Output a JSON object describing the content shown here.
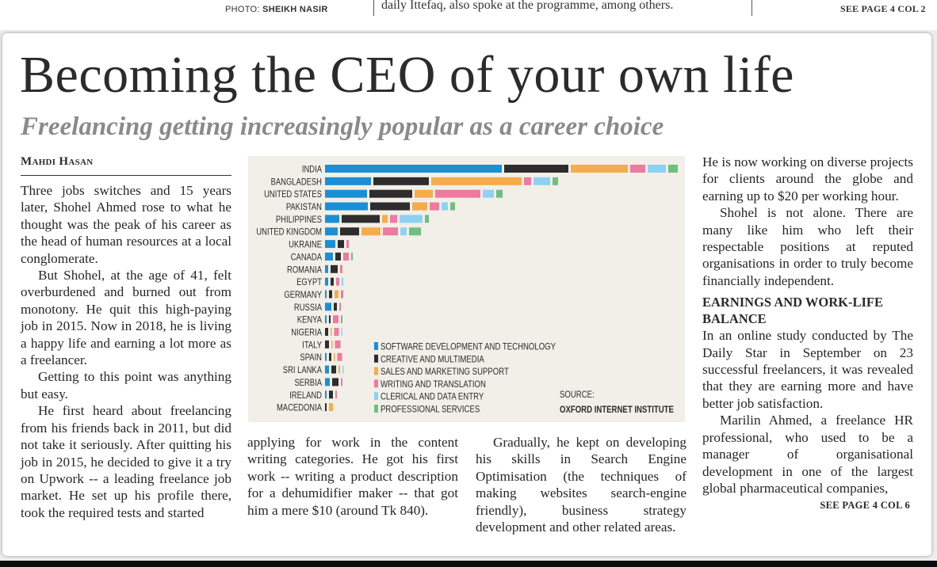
{
  "prev_article": {
    "photo_credit_label": "PHOTO:",
    "photo_credit_name": "SHEIKH NASIR",
    "text_fragment": "daily Ittefaq, also spoke at the programme, among others.",
    "see_page": "SEE PAGE 4 COL 2"
  },
  "article": {
    "headline": "Becoming the CEO of your own life",
    "subheadline": "Freelancing getting increasingly popular as a career choice",
    "byline": "Mahdi Hasan",
    "column_a": [
      "Three jobs switches and 15 years later, Shohel Ahmed rose to what he thought was the peak of his career as the head of human resources at a local conglomerate.",
      "But Shohel, at the age of 41, felt overburdened and burned out from monotony. He quit this high-paying job in 2015. Now in 2018, he is living a happy life and earning a lot more as a freelancer.",
      "Getting to this point was anything but easy.",
      "He first heard about freelancing from his friends back in 2011, but did not take it seriously. After quitting his job in 2015, he decided to give it a try on Upwork -- a leading freelance job market. He set up his profile there, took the required tests and started"
    ],
    "column_b": [
      "applying for work in the content writing categories. He got his first work -- writing a product description for a dehumidifier maker -- that got him a mere $10 (around Tk 840)."
    ],
    "column_c": [
      "Gradually, he kept on developing his skills in Search Engine Optimisation (the techniques of making websites search-engine friendly), business strategy development and other related areas."
    ],
    "column_d": [
      "He is now working on diverse projects for clients around the globe and earning up to $20 per working hour.",
      "Shohel is not alone. There are many like him who left their respectable positions at reputed organisations in order to truly become financially independent."
    ],
    "subsection_heading": "EARNINGS AND WORK-LIFE BALANCE",
    "column_d_after": [
      "In an online study conducted by The Daily Star in September on 23 successful freelancers, it was revealed that they are earning more and have better job satisfaction.",
      "Marilin Ahmed, a freelance HR professional, who used to be a manager of organisational development in one of the largest global pharmaceutical companies,"
    ],
    "see_page": "SEE PAGE 4 COL 6"
  },
  "chart_data": {
    "type": "bar",
    "orientation": "horizontal",
    "stacked": true,
    "title": "",
    "xlabel": "",
    "ylabel": "",
    "units": "relative share (no axis shown; values estimated proportionally)",
    "categories": [
      "INDIA",
      "BANGLADESH",
      "UNITED STATES",
      "PAKISTAN",
      "PHILIPPINES",
      "UNITED KINGDOM",
      "UKRAINE",
      "CANADA",
      "ROMANIA",
      "EGYPT",
      "GERMANY",
      "RUSSIA",
      "KENYA",
      "NIGERIA",
      "ITALY",
      "SPAIN",
      "SRI LANKA",
      "SERBIA",
      "IRELAND",
      "MACEDONIA"
    ],
    "series": [
      {
        "name": "SOFTWARE DEVELOPMENT AND TECHNOLOGY",
        "color": "#1a8fd6",
        "values": [
          223,
          58,
          53,
          54,
          18,
          16,
          13,
          10,
          4,
          4,
          2,
          8,
          2,
          0,
          0,
          2,
          5,
          6,
          2,
          0
        ]
      },
      {
        "name": "CREATIVE AND MULTIMEDIA",
        "color": "#2e2d2e",
        "values": [
          81,
          70,
          54,
          50,
          48,
          24,
          8,
          7,
          9,
          4,
          4,
          4,
          2,
          4,
          5,
          3,
          6,
          8,
          5,
          2
        ]
      },
      {
        "name": "SALES AND MARKETING SUPPORT",
        "color": "#f6ac4a",
        "values": [
          72,
          114,
          23,
          19,
          7,
          24,
          0,
          0,
          0,
          0,
          5,
          0,
          0,
          1,
          1,
          1,
          2,
          0,
          0,
          5
        ]
      },
      {
        "name": "WRITING AND TRANSLATION",
        "color": "#ee7aa0",
        "values": [
          19,
          9,
          57,
          12,
          9,
          19,
          3,
          7,
          3,
          4,
          3,
          2,
          7,
          6,
          7,
          6,
          0,
          2,
          2,
          0
        ]
      },
      {
        "name": "CLERICAL AND DATA ENTRY",
        "color": "#8ed2f3",
        "values": [
          23,
          21,
          14,
          8,
          29,
          8,
          0,
          0,
          0,
          2,
          0,
          0,
          0,
          1,
          0,
          0,
          1,
          0,
          0,
          0
        ]
      },
      {
        "name": "PROFESSIONAL SERVICES",
        "color": "#6fbf7d",
        "values": [
          12,
          7,
          8,
          6,
          5,
          15,
          0,
          2,
          0,
          0,
          0,
          0,
          2,
          0,
          0,
          0,
          0,
          0,
          0,
          0
        ]
      }
    ],
    "legend": {
      "placement": "bottom-center",
      "entries": [
        "SOFTWARE DEVELOPMENT AND TECHNOLOGY",
        "CREATIVE AND MULTIMEDIA",
        "SALES AND MARKETING SUPPORT",
        "WRITING AND TRANSLATION",
        "CLERICAL AND DATA ENTRY",
        "PROFESSIONAL SERVICES"
      ]
    },
    "source_label": "SOURCE:",
    "source_name": "OXFORD INTERNET INSTITUTE",
    "grid": false
  }
}
